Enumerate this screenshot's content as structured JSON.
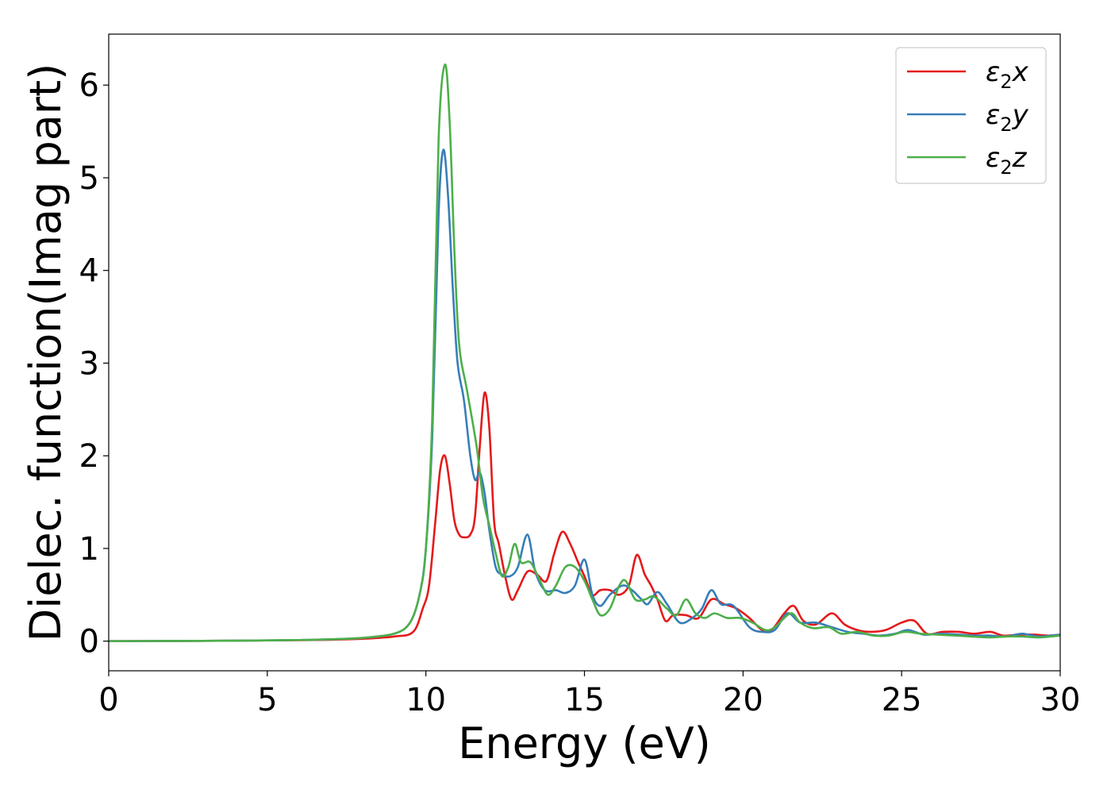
{
  "chart_data": {
    "type": "line",
    "title": "",
    "xlabel": "Energy (eV)",
    "ylabel": "Dielec. function(Imag part)",
    "xlim": [
      0,
      30
    ],
    "ylim": [
      -0.32,
      6.55
    ],
    "x_ticks": [
      0,
      5,
      10,
      15,
      20,
      25,
      30
    ],
    "y_ticks": [
      0,
      1,
      2,
      3,
      4,
      5,
      6
    ],
    "grid": false,
    "legend_position": "top-right",
    "series": [
      {
        "name": "ε2x",
        "legend_base": "ε",
        "legend_sub": "2",
        "legend_var": "x",
        "color": "#e41a1c",
        "points": [
          [
            0,
            0.0
          ],
          [
            2,
            0.002
          ],
          [
            4,
            0.005
          ],
          [
            6,
            0.01
          ],
          [
            7,
            0.015
          ],
          [
            8,
            0.025
          ],
          [
            9,
            0.05
          ],
          [
            9.6,
            0.1
          ],
          [
            9.9,
            0.35
          ],
          [
            10.1,
            0.6
          ],
          [
            10.3,
            1.3
          ],
          [
            10.45,
            1.85
          ],
          [
            10.6,
            2.0
          ],
          [
            10.75,
            1.7
          ],
          [
            10.9,
            1.3
          ],
          [
            11.05,
            1.15
          ],
          [
            11.2,
            1.12
          ],
          [
            11.4,
            1.15
          ],
          [
            11.55,
            1.35
          ],
          [
            11.7,
            2.1
          ],
          [
            11.85,
            2.68
          ],
          [
            12.0,
            2.3
          ],
          [
            12.15,
            1.3
          ],
          [
            12.3,
            1.05
          ],
          [
            12.5,
            0.7
          ],
          [
            12.7,
            0.45
          ],
          [
            12.9,
            0.55
          ],
          [
            13.2,
            0.75
          ],
          [
            13.5,
            0.72
          ],
          [
            13.8,
            0.65
          ],
          [
            14.05,
            0.95
          ],
          [
            14.3,
            1.18
          ],
          [
            14.55,
            1.05
          ],
          [
            14.8,
            0.85
          ],
          [
            15.0,
            0.7
          ],
          [
            15.25,
            0.5
          ],
          [
            15.5,
            0.55
          ],
          [
            15.8,
            0.55
          ],
          [
            16.1,
            0.5
          ],
          [
            16.4,
            0.6
          ],
          [
            16.65,
            0.93
          ],
          [
            16.9,
            0.72
          ],
          [
            17.1,
            0.6
          ],
          [
            17.3,
            0.45
          ],
          [
            17.55,
            0.22
          ],
          [
            17.8,
            0.28
          ],
          [
            18.2,
            0.28
          ],
          [
            18.6,
            0.25
          ],
          [
            19.0,
            0.45
          ],
          [
            19.4,
            0.4
          ],
          [
            19.8,
            0.35
          ],
          [
            20.2,
            0.25
          ],
          [
            20.6,
            0.12
          ],
          [
            20.9,
            0.12
          ],
          [
            21.3,
            0.3
          ],
          [
            21.6,
            0.38
          ],
          [
            21.9,
            0.22
          ],
          [
            22.3,
            0.18
          ],
          [
            22.8,
            0.3
          ],
          [
            23.2,
            0.18
          ],
          [
            23.6,
            0.12
          ],
          [
            24.0,
            0.1
          ],
          [
            24.5,
            0.12
          ],
          [
            25.0,
            0.2
          ],
          [
            25.4,
            0.22
          ],
          [
            25.8,
            0.08
          ],
          [
            26.3,
            0.1
          ],
          [
            26.8,
            0.1
          ],
          [
            27.3,
            0.08
          ],
          [
            27.8,
            0.1
          ],
          [
            28.2,
            0.06
          ],
          [
            28.7,
            0.07
          ],
          [
            29.2,
            0.07
          ],
          [
            29.6,
            0.06
          ],
          [
            30.0,
            0.07
          ]
        ]
      },
      {
        "name": "ε2y",
        "legend_base": "ε",
        "legend_sub": "2",
        "legend_var": "y",
        "color": "#377eb8",
        "points": [
          [
            0,
            0.0
          ],
          [
            2,
            0.002
          ],
          [
            4,
            0.005
          ],
          [
            6,
            0.012
          ],
          [
            7,
            0.02
          ],
          [
            8,
            0.035
          ],
          [
            9,
            0.08
          ],
          [
            9.5,
            0.2
          ],
          [
            9.8,
            0.5
          ],
          [
            10.0,
            1.0
          ],
          [
            10.2,
            2.2
          ],
          [
            10.4,
            4.6
          ],
          [
            10.55,
            5.3
          ],
          [
            10.7,
            4.8
          ],
          [
            10.85,
            3.8
          ],
          [
            11.0,
            3.0
          ],
          [
            11.2,
            2.6
          ],
          [
            11.4,
            2.0
          ],
          [
            11.55,
            1.74
          ],
          [
            11.7,
            1.82
          ],
          [
            11.85,
            1.6
          ],
          [
            12.0,
            1.2
          ],
          [
            12.2,
            0.8
          ],
          [
            12.4,
            0.72
          ],
          [
            12.65,
            0.7
          ],
          [
            12.9,
            0.8
          ],
          [
            13.2,
            1.15
          ],
          [
            13.45,
            0.75
          ],
          [
            13.75,
            0.55
          ],
          [
            14.1,
            0.55
          ],
          [
            14.4,
            0.52
          ],
          [
            14.7,
            0.6
          ],
          [
            15.0,
            0.88
          ],
          [
            15.25,
            0.5
          ],
          [
            15.5,
            0.38
          ],
          [
            15.8,
            0.5
          ],
          [
            16.2,
            0.6
          ],
          [
            16.5,
            0.55
          ],
          [
            16.8,
            0.45
          ],
          [
            17.0,
            0.4
          ],
          [
            17.3,
            0.53
          ],
          [
            17.6,
            0.4
          ],
          [
            18.0,
            0.2
          ],
          [
            18.4,
            0.25
          ],
          [
            18.7,
            0.35
          ],
          [
            19.0,
            0.55
          ],
          [
            19.3,
            0.4
          ],
          [
            19.7,
            0.38
          ],
          [
            20.2,
            0.15
          ],
          [
            20.6,
            0.1
          ],
          [
            21.0,
            0.12
          ],
          [
            21.4,
            0.3
          ],
          [
            21.8,
            0.2
          ],
          [
            22.3,
            0.2
          ],
          [
            22.8,
            0.15
          ],
          [
            23.3,
            0.1
          ],
          [
            23.8,
            0.08
          ],
          [
            24.3,
            0.06
          ],
          [
            24.8,
            0.08
          ],
          [
            25.2,
            0.12
          ],
          [
            25.7,
            0.07
          ],
          [
            26.2,
            0.08
          ],
          [
            26.8,
            0.07
          ],
          [
            27.3,
            0.06
          ],
          [
            27.8,
            0.06
          ],
          [
            28.3,
            0.05
          ],
          [
            28.8,
            0.08
          ],
          [
            29.3,
            0.05
          ],
          [
            29.7,
            0.06
          ],
          [
            30.0,
            0.07
          ]
        ]
      },
      {
        "name": "ε2z",
        "legend_base": "ε",
        "legend_sub": "2",
        "legend_var": "z",
        "color": "#4daf4a",
        "points": [
          [
            0,
            0.0
          ],
          [
            2,
            0.002
          ],
          [
            4,
            0.005
          ],
          [
            6,
            0.012
          ],
          [
            7,
            0.02
          ],
          [
            8,
            0.035
          ],
          [
            9,
            0.08
          ],
          [
            9.5,
            0.2
          ],
          [
            9.8,
            0.5
          ],
          [
            10.0,
            1.0
          ],
          [
            10.2,
            2.4
          ],
          [
            10.4,
            5.4
          ],
          [
            10.6,
            6.22
          ],
          [
            10.75,
            5.6
          ],
          [
            10.9,
            4.2
          ],
          [
            11.05,
            3.2
          ],
          [
            11.3,
            2.7
          ],
          [
            11.6,
            2.1
          ],
          [
            11.8,
            1.55
          ],
          [
            12.0,
            1.25
          ],
          [
            12.2,
            0.95
          ],
          [
            12.4,
            0.7
          ],
          [
            12.6,
            0.8
          ],
          [
            12.8,
            1.05
          ],
          [
            13.0,
            0.85
          ],
          [
            13.3,
            0.85
          ],
          [
            13.6,
            0.65
          ],
          [
            13.85,
            0.5
          ],
          [
            14.1,
            0.6
          ],
          [
            14.4,
            0.8
          ],
          [
            14.7,
            0.8
          ],
          [
            15.0,
            0.65
          ],
          [
            15.25,
            0.45
          ],
          [
            15.5,
            0.28
          ],
          [
            15.8,
            0.35
          ],
          [
            16.1,
            0.6
          ],
          [
            16.3,
            0.65
          ],
          [
            16.6,
            0.45
          ],
          [
            16.9,
            0.45
          ],
          [
            17.2,
            0.48
          ],
          [
            17.6,
            0.35
          ],
          [
            17.9,
            0.28
          ],
          [
            18.2,
            0.45
          ],
          [
            18.5,
            0.3
          ],
          [
            18.8,
            0.25
          ],
          [
            19.1,
            0.3
          ],
          [
            19.5,
            0.25
          ],
          [
            19.9,
            0.25
          ],
          [
            20.3,
            0.2
          ],
          [
            20.7,
            0.12
          ],
          [
            21.0,
            0.15
          ],
          [
            21.5,
            0.3
          ],
          [
            21.8,
            0.2
          ],
          [
            22.2,
            0.14
          ],
          [
            22.7,
            0.15
          ],
          [
            23.1,
            0.08
          ],
          [
            23.6,
            0.1
          ],
          [
            24.1,
            0.06
          ],
          [
            24.6,
            0.06
          ],
          [
            25.1,
            0.1
          ],
          [
            25.6,
            0.08
          ],
          [
            26.1,
            0.07
          ],
          [
            26.7,
            0.06
          ],
          [
            27.2,
            0.05
          ],
          [
            27.8,
            0.04
          ],
          [
            28.3,
            0.05
          ],
          [
            28.8,
            0.05
          ],
          [
            29.3,
            0.04
          ],
          [
            29.7,
            0.05
          ],
          [
            30.0,
            0.06
          ]
        ]
      }
    ]
  }
}
